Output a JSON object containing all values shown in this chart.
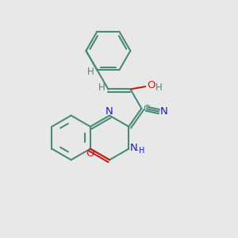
{
  "background_color": "#e8e8e8",
  "bond_color": "#4a8a7a",
  "n_color": "#1a1acc",
  "o_color": "#cc1a1a",
  "line_width": 1.5,
  "font_size": 8.5,
  "fig_size": [
    3.0,
    3.0
  ],
  "dpi": 100,
  "xlim": [
    0,
    10
  ],
  "ylim": [
    0,
    10
  ]
}
